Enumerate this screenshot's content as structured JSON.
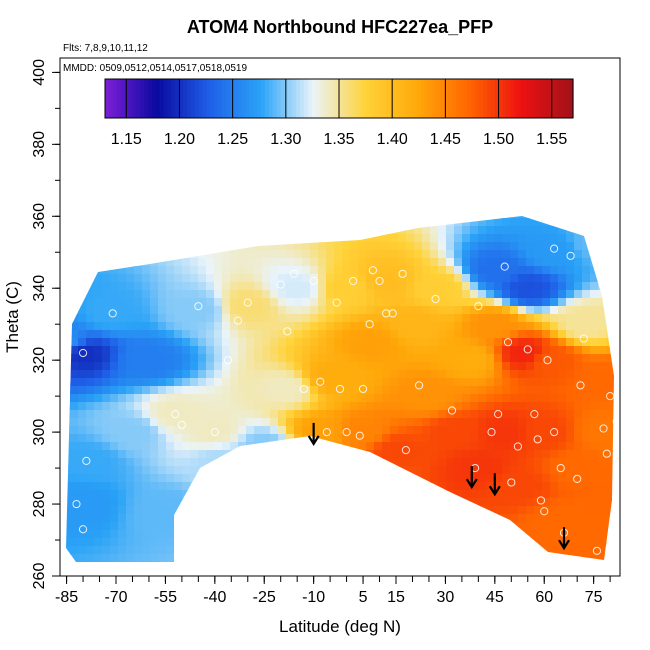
{
  "chart_data": {
    "type": "heatmap",
    "title": "ATOM4 Northbound HFC227ea_PFP",
    "xlabel": "Latitude (deg N)",
    "ylabel": "Theta (C)",
    "xlim": [
      -87,
      83
    ],
    "ylim": [
      260,
      404
    ],
    "xticks": [
      -85,
      -70,
      -55,
      -40,
      -25,
      -10,
      5,
      15,
      30,
      45,
      60,
      75
    ],
    "yticks": [
      260,
      280,
      300,
      320,
      340,
      360,
      380,
      400
    ],
    "annotations": {
      "flights": "Flts: 7,8,9,10,11,12",
      "dates": "MMDD: 0509,0512,0514,0517,0518,0519"
    },
    "colorbar": {
      "min": 1.13,
      "max": 1.57,
      "ticks": [
        1.15,
        1.2,
        1.25,
        1.3,
        1.35,
        1.4,
        1.45,
        1.5,
        1.55
      ],
      "tick_labels": [
        "1.15",
        "1.20",
        "1.25",
        "1.30",
        "1.35",
        "1.40",
        "1.45",
        "1.50",
        "1.55"
      ],
      "colors": [
        "#7d1fd6",
        "#0a0aa0",
        "#1f5fe8",
        "#2aa3f7",
        "#eaf4fa",
        "#ffd33a",
        "#ffa90a",
        "#ff6600",
        "#ee1111",
        "#a0121a"
      ]
    },
    "field_points": [
      {
        "lat": -85,
        "theta": 325,
        "value": 1.26
      },
      {
        "lat": -80,
        "theta": 322,
        "value": 1.2
      },
      {
        "lat": -80,
        "theta": 280,
        "value": 1.27
      },
      {
        "lat": -78,
        "theta": 292,
        "value": 1.28
      },
      {
        "lat": -72,
        "theta": 333,
        "value": 1.28
      },
      {
        "lat": -65,
        "theta": 300,
        "value": 1.3
      },
      {
        "lat": -60,
        "theta": 320,
        "value": 1.25
      },
      {
        "lat": -55,
        "theta": 278,
        "value": 1.29
      },
      {
        "lat": -52,
        "theta": 305,
        "value": 1.34
      },
      {
        "lat": -45,
        "theta": 334,
        "value": 1.3
      },
      {
        "lat": -40,
        "theta": 300,
        "value": 1.34
      },
      {
        "lat": -38,
        "theta": 292,
        "value": 1.31
      },
      {
        "lat": -30,
        "theta": 335,
        "value": 1.36
      },
      {
        "lat": -25,
        "theta": 296,
        "value": 1.3
      },
      {
        "lat": -18,
        "theta": 312,
        "value": 1.34
      },
      {
        "lat": -15,
        "theta": 340,
        "value": 1.32
      },
      {
        "lat": -8,
        "theta": 300,
        "value": 1.43
      },
      {
        "lat": -5,
        "theta": 315,
        "value": 1.42
      },
      {
        "lat": 0,
        "theta": 340,
        "value": 1.38
      },
      {
        "lat": 5,
        "theta": 300,
        "value": 1.45
      },
      {
        "lat": 8,
        "theta": 325,
        "value": 1.43
      },
      {
        "lat": 12,
        "theta": 342,
        "value": 1.4
      },
      {
        "lat": 15,
        "theta": 295,
        "value": 1.49
      },
      {
        "lat": 20,
        "theta": 330,
        "value": 1.41
      },
      {
        "lat": 25,
        "theta": 310,
        "value": 1.44
      },
      {
        "lat": 28,
        "theta": 340,
        "value": 1.38
      },
      {
        "lat": 33,
        "theta": 300,
        "value": 1.49
      },
      {
        "lat": 38,
        "theta": 320,
        "value": 1.42
      },
      {
        "lat": 40,
        "theta": 290,
        "value": 1.5
      },
      {
        "lat": 45,
        "theta": 330,
        "value": 1.44
      },
      {
        "lat": 45,
        "theta": 345,
        "value": 1.24
      },
      {
        "lat": 48,
        "theta": 300,
        "value": 1.5
      },
      {
        "lat": 52,
        "theta": 285,
        "value": 1.49
      },
      {
        "lat": 54,
        "theta": 322,
        "value": 1.51
      },
      {
        "lat": 55,
        "theta": 340,
        "value": 1.22
      },
      {
        "lat": 60,
        "theta": 300,
        "value": 1.49
      },
      {
        "lat": 62,
        "theta": 320,
        "value": 1.48
      },
      {
        "lat": 63,
        "theta": 350,
        "value": 1.27
      },
      {
        "lat": 65,
        "theta": 275,
        "value": 1.47
      },
      {
        "lat": 70,
        "theta": 290,
        "value": 1.47
      },
      {
        "lat": 72,
        "theta": 330,
        "value": 1.35
      },
      {
        "lat": 75,
        "theta": 352,
        "value": 1.29
      },
      {
        "lat": 78,
        "theta": 300,
        "value": 1.46
      },
      {
        "lat": 80,
        "theta": 315,
        "value": 1.47
      },
      {
        "lat": 75,
        "theta": 268,
        "value": 1.47
      }
    ],
    "sample_points": [
      {
        "lat": -85,
        "theta": 329
      },
      {
        "lat": -80,
        "theta": 322
      },
      {
        "lat": -82,
        "theta": 280
      },
      {
        "lat": -80,
        "theta": 273
      },
      {
        "lat": -79,
        "theta": 292
      },
      {
        "lat": -71,
        "theta": 333
      },
      {
        "lat": -52,
        "theta": 305
      },
      {
        "lat": -50,
        "theta": 302
      },
      {
        "lat": -45,
        "theta": 335
      },
      {
        "lat": -42,
        "theta": 290
      },
      {
        "lat": -40,
        "theta": 300
      },
      {
        "lat": -36,
        "theta": 320
      },
      {
        "lat": -33,
        "theta": 331
      },
      {
        "lat": -30,
        "theta": 336
      },
      {
        "lat": -29,
        "theta": 295
      },
      {
        "lat": -24,
        "theta": 296
      },
      {
        "lat": -20,
        "theta": 341
      },
      {
        "lat": -18,
        "theta": 328
      },
      {
        "lat": -16,
        "theta": 344
      },
      {
        "lat": -13,
        "theta": 312
      },
      {
        "lat": -10,
        "theta": 342
      },
      {
        "lat": -8,
        "theta": 314
      },
      {
        "lat": -6,
        "theta": 300
      },
      {
        "lat": -3,
        "theta": 336
      },
      {
        "lat": -2,
        "theta": 312
      },
      {
        "lat": 0,
        "theta": 300
      },
      {
        "lat": 2,
        "theta": 342
      },
      {
        "lat": 4,
        "theta": 299
      },
      {
        "lat": 5,
        "theta": 312
      },
      {
        "lat": 7,
        "theta": 330
      },
      {
        "lat": 8,
        "theta": 345
      },
      {
        "lat": 10,
        "theta": 342
      },
      {
        "lat": 12,
        "theta": 333
      },
      {
        "lat": 14,
        "theta": 333
      },
      {
        "lat": 17,
        "theta": 344
      },
      {
        "lat": 18,
        "theta": 295
      },
      {
        "lat": 22,
        "theta": 313
      },
      {
        "lat": 27,
        "theta": 337
      },
      {
        "lat": 32,
        "theta": 306
      },
      {
        "lat": 39,
        "theta": 290
      },
      {
        "lat": 40,
        "theta": 335
      },
      {
        "lat": 44,
        "theta": 300
      },
      {
        "lat": 46,
        "theta": 305
      },
      {
        "lat": 48,
        "theta": 346
      },
      {
        "lat": 49,
        "theta": 325
      },
      {
        "lat": 50,
        "theta": 286
      },
      {
        "lat": 52,
        "theta": 296
      },
      {
        "lat": 55,
        "theta": 323
      },
      {
        "lat": 57,
        "theta": 305
      },
      {
        "lat": 58,
        "theta": 298
      },
      {
        "lat": 59,
        "theta": 281
      },
      {
        "lat": 60,
        "theta": 278
      },
      {
        "lat": 61,
        "theta": 320
      },
      {
        "lat": 63,
        "theta": 300
      },
      {
        "lat": 63,
        "theta": 351
      },
      {
        "lat": 65,
        "theta": 290
      },
      {
        "lat": 66,
        "theta": 272
      },
      {
        "lat": 68,
        "theta": 349
      },
      {
        "lat": 70,
        "theta": 287
      },
      {
        "lat": 71,
        "theta": 313
      },
      {
        "lat": 72,
        "theta": 326
      },
      {
        "lat": 74,
        "theta": 354
      },
      {
        "lat": 76,
        "theta": 267
      },
      {
        "lat": 78,
        "theta": 301
      },
      {
        "lat": 79,
        "theta": 294
      },
      {
        "lat": 80,
        "theta": 310
      },
      {
        "lat": 81,
        "theta": 327
      },
      {
        "lat": 82,
        "theta": 303
      }
    ],
    "arrows": [
      {
        "lat": -10,
        "theta": 297
      },
      {
        "lat": 38,
        "theta": 285
      },
      {
        "lat": 45,
        "theta": 283
      },
      {
        "lat": 66,
        "theta": 268
      }
    ]
  }
}
